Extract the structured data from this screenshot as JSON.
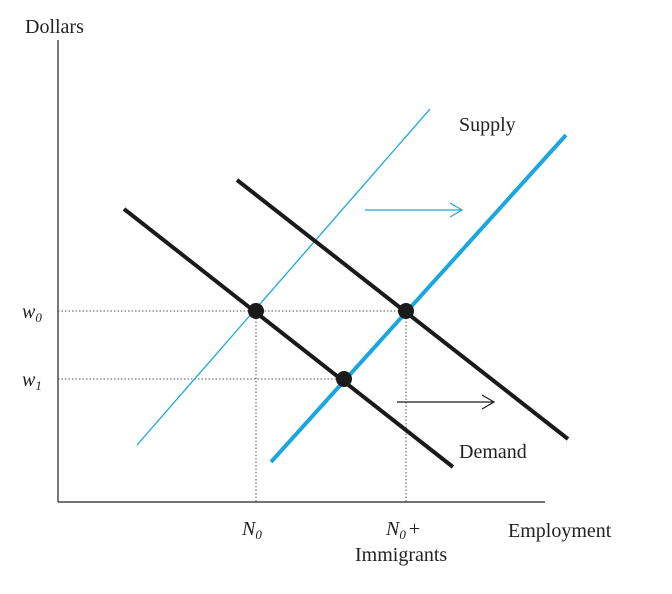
{
  "labels": {
    "y_axis": "Dollars",
    "x_axis": "Employment",
    "supply": "Supply",
    "demand": "Demand",
    "w0_base": "w",
    "w0_sub": "0",
    "w1_base": "w",
    "w1_sub": "1",
    "n0_base": "N",
    "n0_sub": "0",
    "n0_imm_base": "N",
    "n0_imm_sub": "0",
    "n0_imm_plus": "+",
    "immigrants": "Immigrants"
  },
  "colors": {
    "axis": "#222222",
    "demand": "#1a1a1a",
    "supply": "#1aa7e0",
    "guide": "#555555"
  }
}
